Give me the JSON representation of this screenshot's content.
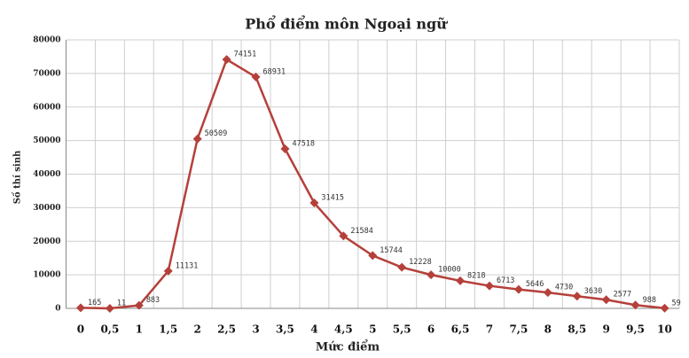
{
  "chart_data": {
    "type": "line",
    "title": "Phổ điểm môn Ngoại ngữ",
    "x_label": "Mức điểm",
    "y_label": "Số thí sinh",
    "categories": [
      "0",
      "0,5",
      "1",
      "1,5",
      "2",
      "2,5",
      "3",
      "3,5",
      "4",
      "4,5",
      "5",
      "5,5",
      "6",
      "6,5",
      "7",
      "7,5",
      "8",
      "8,5",
      "9",
      "9,5",
      "10"
    ],
    "values": [
      165,
      11,
      883,
      11131,
      50509,
      74151,
      68931,
      47518,
      31415,
      21584,
      15744,
      12228,
      10000,
      8218,
      6713,
      5646,
      4730,
      3630,
      2577,
      988,
      59
    ],
    "color": "#b5403a",
    "ylim": [
      0,
      80000
    ],
    "yticks": [
      0,
      10000,
      20000,
      30000,
      40000,
      50000,
      60000,
      70000,
      80000
    ],
    "grid": true
  }
}
